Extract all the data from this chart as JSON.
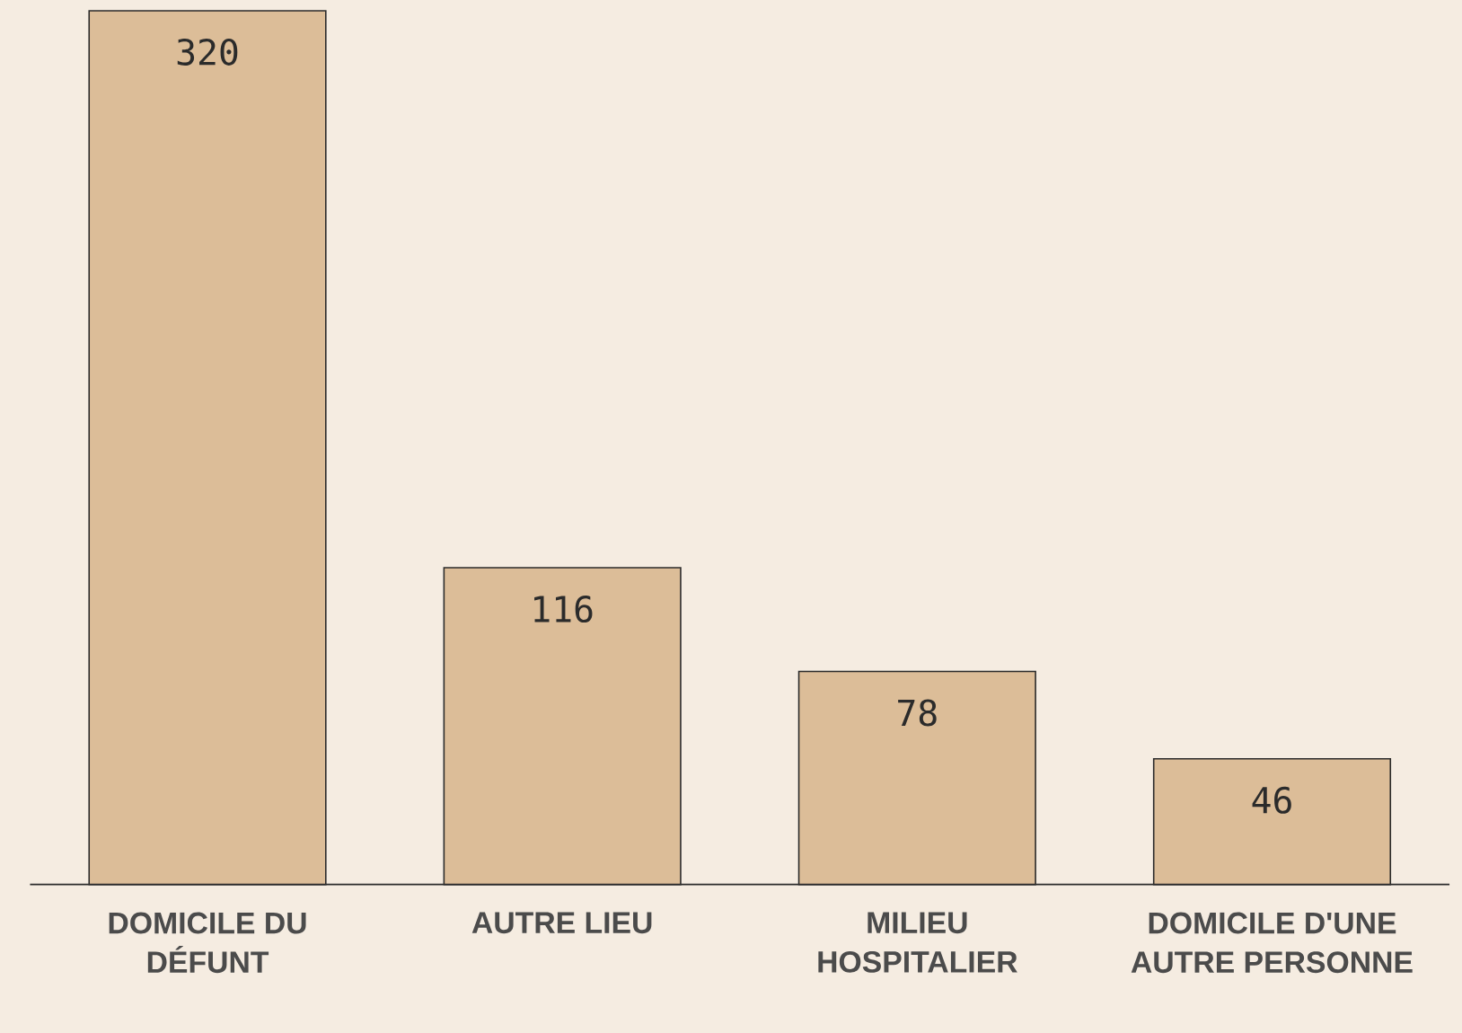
{
  "chart_data": {
    "type": "bar",
    "categories": [
      "DOMICILE DU DÉFUNT",
      "AUTRE LIEU",
      "MILIEU HOSPITALIER",
      "DOMICILE D'UNE AUTRE PERSONNE"
    ],
    "values": [
      320,
      116,
      78,
      46
    ],
    "color": "#dcbd98",
    "data_labels": true
  }
}
